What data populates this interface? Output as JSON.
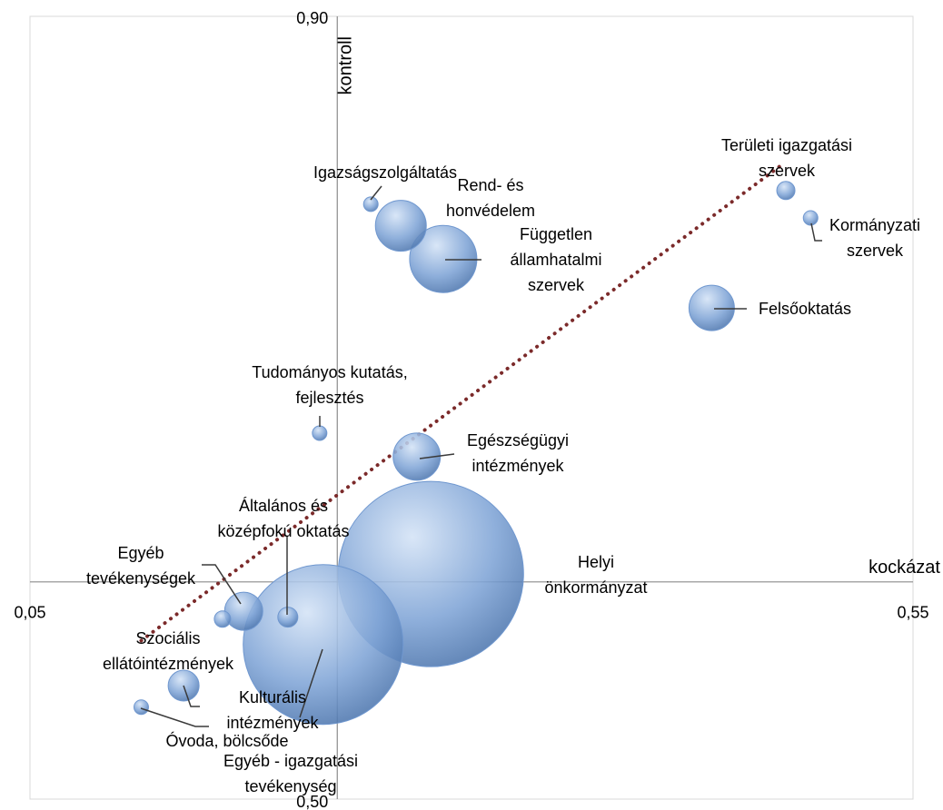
{
  "chart_data": {
    "type": "bubble",
    "x_label": "kockázat",
    "y_label": "kontroll",
    "xlim": [
      0.05,
      0.55
    ],
    "ylim": [
      0.5,
      0.9
    ],
    "xticks": [
      {
        "value": 0.05,
        "label": "0,05"
      },
      {
        "value": 0.55,
        "label": "0,55"
      }
    ],
    "yticks": [
      {
        "value": 0.5,
        "label": "0,50"
      },
      {
        "value": 0.9,
        "label": "0,90"
      }
    ],
    "y_axis_crosses_x": 0.224,
    "x_axis_crosses_y": 0.611,
    "color": "#6f97cf",
    "names": [
      "Igazságszolgáltatás",
      "Rend- és honvédelem",
      "Független államhatalmi szervek",
      "Területi igazgatási szervek",
      "Kormányzati szervek",
      "Felsőoktatás",
      "Tudományos kutatás, fejlesztés",
      "Egészségügyi intézmények",
      "Helyi önkormányzat",
      "Egyéb - igazgatási tevékenység",
      "Általános és középfokú oktatás",
      "Egyéb tevékenységek",
      "Kulturális intézmények",
      "Szociális ellátóintézmények",
      "Óvoda, bölcsőde"
    ],
    "x": [
      0.243,
      0.26,
      0.284,
      0.478,
      0.492,
      0.436,
      0.214,
      0.269,
      0.277,
      0.216,
      0.196,
      0.171,
      0.159,
      0.137,
      0.113
    ],
    "y": [
      0.804,
      0.793,
      0.776,
      0.811,
      0.797,
      0.751,
      0.687,
      0.675,
      0.615,
      0.579,
      0.593,
      0.596,
      0.592,
      0.558,
      0.547
    ],
    "sizes": [
      64,
      784,
      1369,
      100,
      64,
      625,
      64,
      676,
      10404,
      7744,
      121,
      441,
      81,
      289,
      64
    ],
    "trendline": {
      "color": "#7b2a2a",
      "x": [
        0.113,
        0.477
      ],
      "y": [
        0.581,
        0.825
      ]
    }
  }
}
